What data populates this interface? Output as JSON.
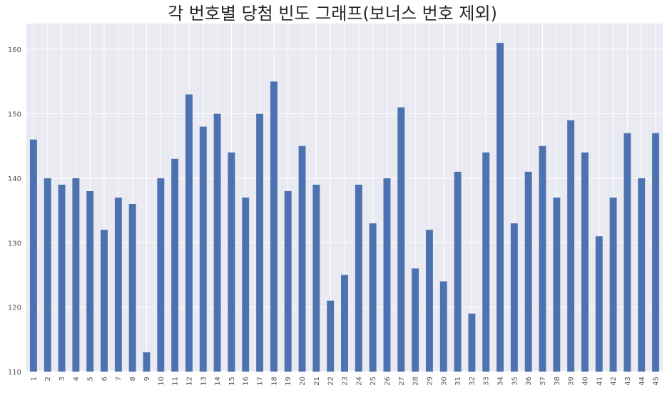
{
  "chart_data": {
    "type": "bar",
    "title": "각 번호별 당첨 빈도 그래프(보너스 번호 제외)",
    "xlabel": "",
    "ylabel": "",
    "categories": [
      "1",
      "2",
      "3",
      "4",
      "5",
      "6",
      "7",
      "8",
      "9",
      "10",
      "11",
      "12",
      "13",
      "14",
      "15",
      "16",
      "17",
      "18",
      "19",
      "20",
      "21",
      "22",
      "23",
      "24",
      "25",
      "26",
      "27",
      "28",
      "29",
      "30",
      "31",
      "32",
      "33",
      "34",
      "35",
      "36",
      "37",
      "38",
      "39",
      "40",
      "41",
      "42",
      "43",
      "44",
      "45"
    ],
    "values": [
      146,
      140,
      139,
      140,
      138,
      132,
      137,
      136,
      113,
      140,
      143,
      153,
      148,
      150,
      144,
      137,
      150,
      155,
      138,
      145,
      139,
      121,
      125,
      139,
      133,
      140,
      151,
      126,
      132,
      124,
      141,
      119,
      144,
      161,
      133,
      141,
      145,
      137,
      149,
      144,
      131,
      137,
      147,
      140,
      147
    ],
    "ylim": [
      110,
      164
    ],
    "yticks": [
      110,
      120,
      130,
      140,
      150,
      160
    ],
    "grid": true,
    "colors": {
      "bar": "#4c72b0",
      "background": "#eaeaf2",
      "grid": "#ffffff"
    }
  }
}
